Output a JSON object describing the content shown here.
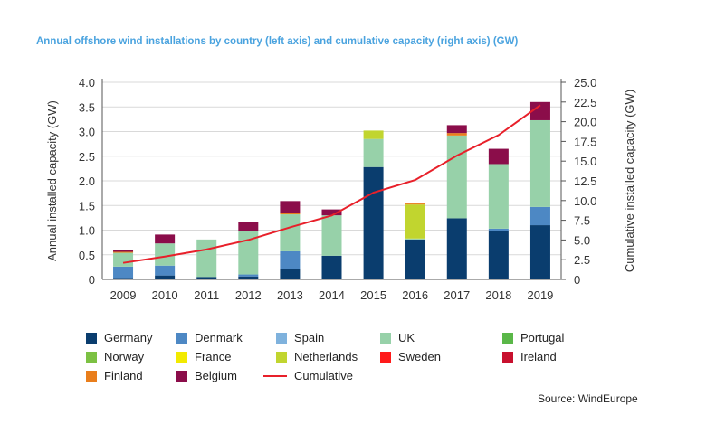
{
  "chart_data": {
    "type": "bar",
    "stacked": true,
    "title": "Annual offshore wind installations by country (left axis) and cumulative capacity (right axis) (GW)",
    "ylabel": "Annual installed capacity (GW)",
    "y2label": "Cumulative installed capacity (GW)",
    "source": "Source: WindEurope",
    "ylim": [
      0,
      4.0
    ],
    "y2lim": [
      0,
      25.0
    ],
    "yticks": [
      "0",
      "0.5",
      "1.0",
      "1.5",
      "2.0",
      "2.5",
      "3.0",
      "3.5",
      "4.0"
    ],
    "y2ticks": [
      "0",
      "2.5",
      "5.0",
      "7.5",
      "10.0",
      "12.5",
      "15.0",
      "17.5",
      "20.0",
      "22.5",
      "25.0"
    ],
    "categories": [
      "2009",
      "2010",
      "2011",
      "2012",
      "2013",
      "2014",
      "2015",
      "2016",
      "2017",
      "2018",
      "2019"
    ],
    "series": [
      {
        "name": "Germany",
        "color": "#0a3d6e",
        "values": [
          0.03,
          0.08,
          0.05,
          0.06,
          0.22,
          0.48,
          2.28,
          0.81,
          1.24,
          0.98,
          1.1
        ]
      },
      {
        "name": "Denmark",
        "color": "#4d88c4",
        "values": [
          0.23,
          0.2,
          0.0,
          0.04,
          0.35,
          0.0,
          0.0,
          0.0,
          0.0,
          0.05,
          0.37
        ]
      },
      {
        "name": "Spain",
        "color": "#7fb2dd",
        "values": [
          0,
          0,
          0,
          0,
          0,
          0,
          0,
          0,
          0,
          0,
          0
        ]
      },
      {
        "name": "UK",
        "color": "#97d1a9",
        "values": [
          0.28,
          0.45,
          0.76,
          0.88,
          0.75,
          0.82,
          0.57,
          0.02,
          1.68,
          1.31,
          1.76
        ]
      },
      {
        "name": "Portugal",
        "color": "#5ab748",
        "values": [
          0,
          0,
          0,
          0,
          0,
          0,
          0,
          0,
          0,
          0,
          0
        ]
      },
      {
        "name": "Norway",
        "color": "#7cc143",
        "values": [
          0,
          0,
          0,
          0,
          0,
          0,
          0,
          0,
          0,
          0,
          0
        ]
      },
      {
        "name": "France",
        "color": "#f2ea00",
        "values": [
          0,
          0,
          0,
          0,
          0,
          0,
          0,
          0,
          0,
          0,
          0
        ]
      },
      {
        "name": "Netherlands",
        "color": "#c1d52f",
        "values": [
          0.0,
          0.0,
          0.0,
          0.0,
          0.0,
          0.0,
          0.17,
          0.69,
          0.0,
          0.0,
          0.0
        ]
      },
      {
        "name": "Sweden",
        "color": "#ff1a1a",
        "values": [
          0,
          0,
          0,
          0,
          0,
          0,
          0,
          0,
          0,
          0,
          0
        ]
      },
      {
        "name": "Ireland",
        "color": "#c8102e",
        "values": [
          0,
          0,
          0,
          0,
          0,
          0,
          0,
          0,
          0,
          0,
          0
        ]
      },
      {
        "name": "Finland",
        "color": "#e97e1c",
        "values": [
          0.02,
          0.0,
          0.0,
          0.0,
          0.03,
          0.0,
          0.0,
          0.02,
          0.05,
          0.0,
          0.0
        ]
      },
      {
        "name": "Belgium",
        "color": "#8b0d4a",
        "values": [
          0.04,
          0.18,
          0.0,
          0.19,
          0.24,
          0.12,
          0.0,
          0.0,
          0.16,
          0.31,
          0.37
        ]
      }
    ],
    "line": {
      "name": "Cumulative",
      "color": "#e8202a",
      "values": [
        2.1,
        2.9,
        3.8,
        5.0,
        6.6,
        8.1,
        11.0,
        12.6,
        15.7,
        18.3,
        22.1
      ]
    },
    "grid": "horizontal",
    "legend_position": "bottom"
  }
}
